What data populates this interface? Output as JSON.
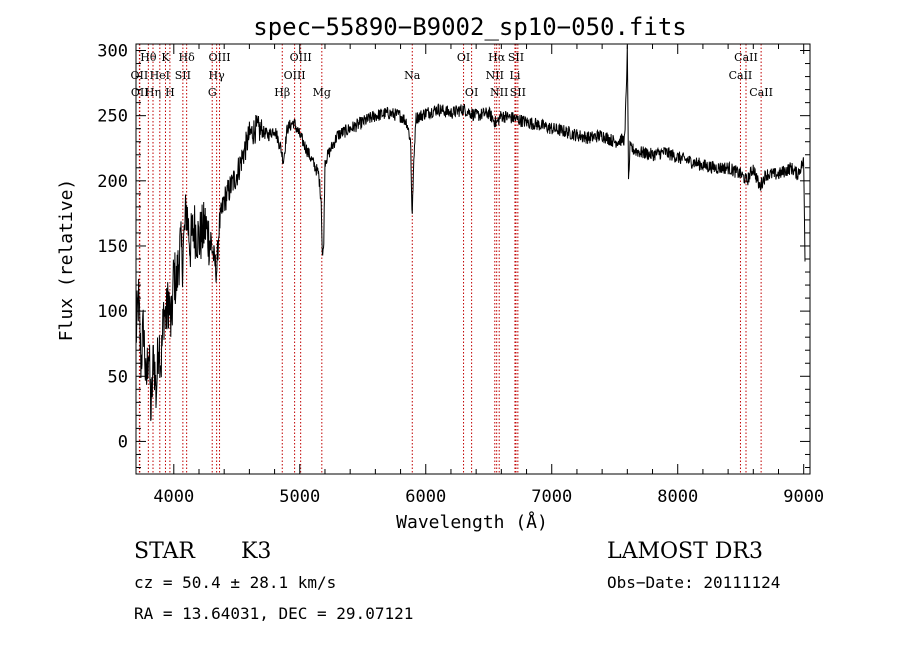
{
  "header": {
    "title": "spec−55890−B9002_sp10−050.fits"
  },
  "info": {
    "object_class": "STAR",
    "subclass": "K3",
    "survey": "LAMOST DR3",
    "redshift_line": "cz = 50.4 ± 28.1 km/s",
    "obs_date_line": "Obs−Date: 20111124",
    "coords_line": "RA =  13.64031, DEC =  29.07121"
  },
  "colors": {
    "spectrum": "#000000",
    "line_marker": "#c00000",
    "axes": "#000000",
    "background": "#ffffff"
  },
  "chart_data": {
    "type": "line",
    "title": "spec−55890−B9002_sp10−050.fits",
    "xlabel": "Wavelength (Å)",
    "ylabel": "Flux (relative)",
    "xlim": [
      3700,
      9050
    ],
    "ylim": [
      -25,
      305
    ],
    "xticks": [
      4000,
      5000,
      6000,
      7000,
      8000,
      9000
    ],
    "yticks": [
      0,
      50,
      100,
      150,
      200,
      250,
      300
    ],
    "xtick_labels": [
      "4000",
      "5000",
      "6000",
      "7000",
      "8000",
      "9000"
    ],
    "ytick_labels": [
      "0",
      "50",
      "100",
      "150",
      "200",
      "250",
      "300"
    ],
    "series": [
      {
        "name": "flux",
        "anchors": [
          [
            3700,
            80
          ],
          [
            3720,
            110
          ],
          [
            3740,
            60
          ],
          [
            3760,
            90
          ],
          [
            3780,
            40
          ],
          [
            3800,
            75
          ],
          [
            3820,
            20
          ],
          [
            3840,
            70
          ],
          [
            3860,
            35
          ],
          [
            3880,
            80
          ],
          [
            3900,
            60
          ],
          [
            3920,
            100
          ],
          [
            3940,
            95
          ],
          [
            3960,
            110
          ],
          [
            3980,
            85
          ],
          [
            4000,
            130
          ],
          [
            4020,
            120
          ],
          [
            4050,
            150
          ],
          [
            4070,
            140
          ],
          [
            4100,
            180
          ],
          [
            4130,
            150
          ],
          [
            4160,
            165
          ],
          [
            4200,
            155
          ],
          [
            4250,
            165
          ],
          [
            4300,
            150
          ],
          [
            4320,
            140
          ],
          [
            4340,
            130
          ],
          [
            4360,
            165
          ],
          [
            4400,
            185
          ],
          [
            4450,
            195
          ],
          [
            4500,
            205
          ],
          [
            4550,
            220
          ],
          [
            4600,
            235
          ],
          [
            4650,
            240
          ],
          [
            4700,
            238
          ],
          [
            4750,
            235
          ],
          [
            4800,
            240
          ],
          [
            4850,
            225
          ],
          [
            4870,
            215
          ],
          [
            4900,
            240
          ],
          [
            4950,
            245
          ],
          [
            5000,
            235
          ],
          [
            5050,
            225
          ],
          [
            5100,
            215
          ],
          [
            5150,
            205
          ],
          [
            5170,
            185
          ],
          [
            5180,
            140
          ],
          [
            5190,
            150
          ],
          [
            5200,
            215
          ],
          [
            5250,
            225
          ],
          [
            5300,
            235
          ],
          [
            5400,
            240
          ],
          [
            5500,
            245
          ],
          [
            5600,
            250
          ],
          [
            5700,
            252
          ],
          [
            5800,
            250
          ],
          [
            5850,
            245
          ],
          [
            5880,
            230
          ],
          [
            5892,
            170
          ],
          [
            5900,
            200
          ],
          [
            5920,
            248
          ],
          [
            6000,
            252
          ],
          [
            6100,
            255
          ],
          [
            6200,
            252
          ],
          [
            6300,
            255
          ],
          [
            6400,
            250
          ],
          [
            6500,
            252
          ],
          [
            6560,
            244
          ],
          [
            6600,
            250
          ],
          [
            6700,
            248
          ],
          [
            6800,
            245
          ],
          [
            6900,
            243
          ],
          [
            7000,
            240
          ],
          [
            7100,
            238
          ],
          [
            7200,
            235
          ],
          [
            7300,
            233
          ],
          [
            7400,
            235
          ],
          [
            7500,
            230
          ],
          [
            7580,
            232
          ],
          [
            7600,
            300
          ],
          [
            7610,
            195
          ],
          [
            7620,
            225
          ],
          [
            7700,
            222
          ],
          [
            7800,
            220
          ],
          [
            7900,
            222
          ],
          [
            8000,
            218
          ],
          [
            8100,
            215
          ],
          [
            8200,
            212
          ],
          [
            8300,
            210
          ],
          [
            8400,
            210
          ],
          [
            8500,
            205
          ],
          [
            8550,
            200
          ],
          [
            8600,
            210
          ],
          [
            8650,
            195
          ],
          [
            8700,
            205
          ],
          [
            8800,
            205
          ],
          [
            8900,
            210
          ],
          [
            8950,
            205
          ],
          [
            9000,
            215
          ],
          [
            9010,
            140
          ]
        ]
      }
    ],
    "line_markers": [
      {
        "label": "Hθ",
        "x": 3798,
        "row": 0
      },
      {
        "label": "OII",
        "x": 3727,
        "row": 1
      },
      {
        "label": "OII",
        "x": 3730,
        "row": 2
      },
      {
        "label": "Hη",
        "x": 3835,
        "row": 2
      },
      {
        "label": "K",
        "x": 3934,
        "row": 0
      },
      {
        "label": "HeI",
        "x": 3889,
        "row": 1
      },
      {
        "label": "H",
        "x": 3969,
        "row": 2
      },
      {
        "label": "SII",
        "x": 4072,
        "row": 1
      },
      {
        "label": "Hδ",
        "x": 4102,
        "row": 0
      },
      {
        "label": "OIII",
        "x": 4363,
        "row": 0
      },
      {
        "label": "Hγ",
        "x": 4340,
        "row": 1
      },
      {
        "label": "G",
        "x": 4305,
        "row": 2
      },
      {
        "label": "Hβ",
        "x": 4861,
        "row": 2
      },
      {
        "label": "OIII",
        "x": 5007,
        "row": 0
      },
      {
        "label": "OIII",
        "x": 4959,
        "row": 1
      },
      {
        "label": "Mg",
        "x": 5175,
        "row": 2
      },
      {
        "label": "Na",
        "x": 5893,
        "row": 1
      },
      {
        "label": "OI",
        "x": 6300,
        "row": 0
      },
      {
        "label": "OI",
        "x": 6364,
        "row": 2
      },
      {
        "label": "Hα",
        "x": 6563,
        "row": 0
      },
      {
        "label": "SII",
        "x": 6716,
        "row": 0
      },
      {
        "label": "NII",
        "x": 6548,
        "row": 1
      },
      {
        "label": "Li",
        "x": 6708,
        "row": 1
      },
      {
        "label": "NII",
        "x": 6583,
        "row": 2
      },
      {
        "label": "SII",
        "x": 6731,
        "row": 2
      },
      {
        "label": "CaII",
        "x": 8542,
        "row": 0
      },
      {
        "label": "CaII",
        "x": 8498,
        "row": 1
      },
      {
        "label": "CaII",
        "x": 8662,
        "row": 2
      }
    ]
  }
}
